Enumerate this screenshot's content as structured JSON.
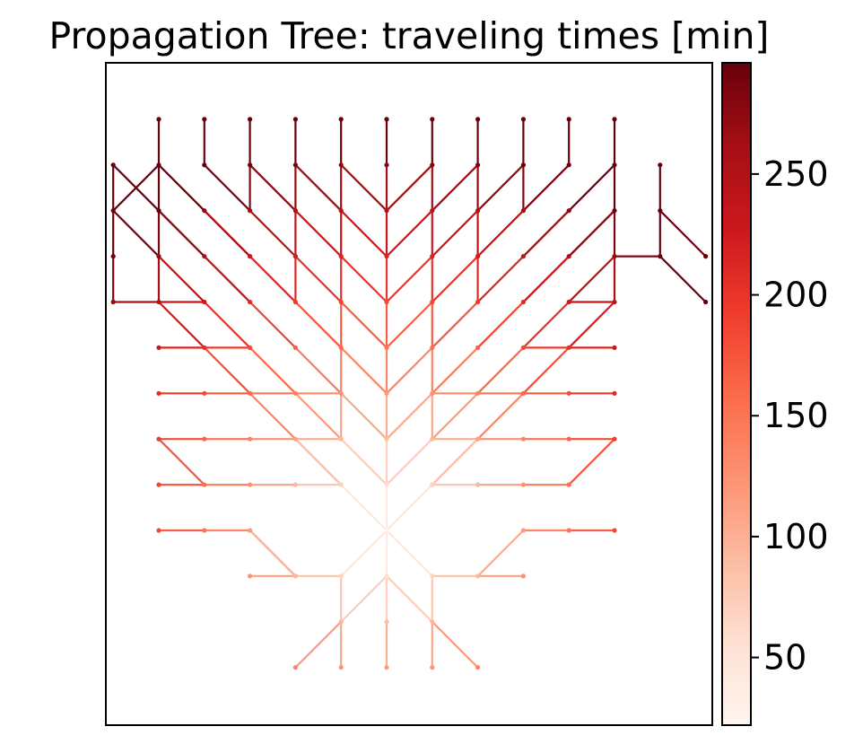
{
  "chart_data": {
    "type": "tree",
    "title": "Propagation Tree: traveling times [min]",
    "xlabel": "",
    "ylabel": "",
    "axes_ticks_visible": false,
    "grid": false,
    "legend": "none",
    "root": [
      0,
      0
    ],
    "edges": [
      [
        [
          0,
          0
        ],
        [
          0,
          1
        ]
      ],
      [
        [
          0,
          1
        ],
        [
          0,
          2
        ]
      ],
      [
        [
          0,
          2
        ],
        [
          0,
          3
        ]
      ],
      [
        [
          0,
          3
        ],
        [
          0,
          4
        ]
      ],
      [
        [
          0,
          4
        ],
        [
          0,
          5
        ]
      ],
      [
        [
          0,
          5
        ],
        [
          0,
          6
        ]
      ],
      [
        [
          0,
          6
        ],
        [
          0,
          7
        ]
      ],
      [
        [
          0,
          7
        ],
        [
          0,
          8
        ]
      ],
      [
        [
          0,
          8
        ],
        [
          0,
          9
        ]
      ],
      [
        [
          0,
          0
        ],
        [
          0,
          -1
        ]
      ],
      [
        [
          0,
          -1
        ],
        [
          0,
          -2
        ]
      ],
      [
        [
          0,
          -2
        ],
        [
          0,
          -3
        ]
      ],
      [
        [
          0,
          0
        ],
        [
          -1,
          -1
        ]
      ],
      [
        [
          -1,
          -1
        ],
        [
          -1,
          -2
        ]
      ],
      [
        [
          -1,
          -2
        ],
        [
          -1,
          -3
        ]
      ],
      [
        [
          0,
          0
        ],
        [
          1,
          -1
        ]
      ],
      [
        [
          1,
          -1
        ],
        [
          1,
          -2
        ]
      ],
      [
        [
          1,
          -2
        ],
        [
          1,
          -3
        ]
      ],
      [
        [
          0,
          -1
        ],
        [
          -1,
          -2
        ]
      ],
      [
        [
          -1,
          -2
        ],
        [
          -2,
          -3
        ]
      ],
      [
        [
          0,
          -1
        ],
        [
          1,
          -2
        ]
      ],
      [
        [
          1,
          -2
        ],
        [
          2,
          -3
        ]
      ],
      [
        [
          -1,
          -1
        ],
        [
          -2,
          -1
        ]
      ],
      [
        [
          -2,
          -1
        ],
        [
          -3,
          -1
        ]
      ],
      [
        [
          1,
          -1
        ],
        [
          2,
          -1
        ]
      ],
      [
        [
          2,
          -1
        ],
        [
          3,
          -1
        ]
      ],
      [
        [
          -2,
          -1
        ],
        [
          -3,
          0
        ]
      ],
      [
        [
          -3,
          0
        ],
        [
          -4,
          0
        ]
      ],
      [
        [
          -4,
          0
        ],
        [
          -5,
          0
        ]
      ],
      [
        [
          2,
          -1
        ],
        [
          3,
          0
        ]
      ],
      [
        [
          3,
          0
        ],
        [
          4,
          0
        ]
      ],
      [
        [
          4,
          0
        ],
        [
          5,
          0
        ]
      ],
      [
        [
          0,
          0
        ],
        [
          -1,
          1
        ]
      ],
      [
        [
          -1,
          1
        ],
        [
          -2,
          2
        ]
      ],
      [
        [
          -2,
          2
        ],
        [
          -3,
          3
        ]
      ],
      [
        [
          -3,
          3
        ],
        [
          -4,
          4
        ]
      ],
      [
        [
          -4,
          4
        ],
        [
          -5,
          5
        ]
      ],
      [
        [
          0,
          0
        ],
        [
          1,
          1
        ]
      ],
      [
        [
          1,
          1
        ],
        [
          2,
          2
        ]
      ],
      [
        [
          2,
          2
        ],
        [
          3,
          3
        ]
      ],
      [
        [
          3,
          3
        ],
        [
          4,
          4
        ]
      ],
      [
        [
          4,
          4
        ],
        [
          5,
          5
        ]
      ],
      [
        [
          0,
          1
        ],
        [
          -1,
          2
        ]
      ],
      [
        [
          -1,
          2
        ],
        [
          -2,
          3
        ]
      ],
      [
        [
          -2,
          3
        ],
        [
          -3,
          4
        ]
      ],
      [
        [
          -3,
          4
        ],
        [
          -4,
          5
        ]
      ],
      [
        [
          -4,
          5
        ],
        [
          -5,
          6
        ]
      ],
      [
        [
          0,
          1
        ],
        [
          1,
          2
        ]
      ],
      [
        [
          1,
          2
        ],
        [
          2,
          3
        ]
      ],
      [
        [
          2,
          3
        ],
        [
          3,
          4
        ]
      ],
      [
        [
          3,
          4
        ],
        [
          4,
          5
        ]
      ],
      [
        [
          4,
          5
        ],
        [
          5,
          6
        ]
      ],
      [
        [
          0,
          2
        ],
        [
          -1,
          3
        ]
      ],
      [
        [
          -1,
          3
        ],
        [
          -2,
          4
        ]
      ],
      [
        [
          -2,
          4
        ],
        [
          -3,
          5
        ]
      ],
      [
        [
          -3,
          5
        ],
        [
          -4,
          6
        ]
      ],
      [
        [
          -4,
          6
        ],
        [
          -5,
          7
        ]
      ],
      [
        [
          0,
          2
        ],
        [
          1,
          3
        ]
      ],
      [
        [
          1,
          3
        ],
        [
          2,
          4
        ]
      ],
      [
        [
          2,
          4
        ],
        [
          3,
          5
        ]
      ],
      [
        [
          3,
          5
        ],
        [
          4,
          6
        ]
      ],
      [
        [
          4,
          6
        ],
        [
          5,
          7
        ]
      ],
      [
        [
          0,
          3
        ],
        [
          -1,
          4
        ]
      ],
      [
        [
          -1,
          4
        ],
        [
          -2,
          5
        ]
      ],
      [
        [
          -2,
          5
        ],
        [
          -3,
          6
        ]
      ],
      [
        [
          -3,
          6
        ],
        [
          -4,
          7
        ]
      ],
      [
        [
          -4,
          7
        ],
        [
          -5,
          8
        ]
      ],
      [
        [
          0,
          3
        ],
        [
          1,
          4
        ]
      ],
      [
        [
          1,
          4
        ],
        [
          2,
          5
        ]
      ],
      [
        [
          2,
          5
        ],
        [
          3,
          6
        ]
      ],
      [
        [
          3,
          6
        ],
        [
          4,
          7
        ]
      ],
      [
        [
          4,
          7
        ],
        [
          5,
          8
        ]
      ],
      [
        [
          0,
          4
        ],
        [
          -1,
          5
        ]
      ],
      [
        [
          -1,
          5
        ],
        [
          -2,
          6
        ]
      ],
      [
        [
          -2,
          6
        ],
        [
          -3,
          7
        ]
      ],
      [
        [
          -3,
          7
        ],
        [
          -4,
          8
        ]
      ],
      [
        [
          0,
          4
        ],
        [
          1,
          5
        ]
      ],
      [
        [
          1,
          5
        ],
        [
          2,
          6
        ]
      ],
      [
        [
          2,
          6
        ],
        [
          3,
          7
        ]
      ],
      [
        [
          3,
          7
        ],
        [
          4,
          8
        ]
      ],
      [
        [
          0,
          5
        ],
        [
          -1,
          6
        ]
      ],
      [
        [
          -1,
          6
        ],
        [
          -2,
          7
        ]
      ],
      [
        [
          -2,
          7
        ],
        [
          -3,
          8
        ]
      ],
      [
        [
          0,
          5
        ],
        [
          1,
          6
        ]
      ],
      [
        [
          1,
          6
        ],
        [
          2,
          7
        ]
      ],
      [
        [
          2,
          7
        ],
        [
          3,
          8
        ]
      ],
      [
        [
          0,
          6
        ],
        [
          -1,
          7
        ]
      ],
      [
        [
          -1,
          7
        ],
        [
          -2,
          8
        ]
      ],
      [
        [
          0,
          6
        ],
        [
          1,
          7
        ]
      ],
      [
        [
          1,
          7
        ],
        [
          2,
          8
        ]
      ],
      [
        [
          0,
          7
        ],
        [
          -1,
          8
        ]
      ],
      [
        [
          0,
          7
        ],
        [
          1,
          8
        ]
      ],
      [
        [
          -1,
          2
        ],
        [
          -1,
          3
        ]
      ],
      [
        [
          -1,
          3
        ],
        [
          -1,
          4
        ]
      ],
      [
        [
          -1,
          4
        ],
        [
          -1,
          5
        ]
      ],
      [
        [
          -1,
          5
        ],
        [
          -1,
          6
        ]
      ],
      [
        [
          -1,
          6
        ],
        [
          -1,
          7
        ]
      ],
      [
        [
          -1,
          7
        ],
        [
          -1,
          8
        ]
      ],
      [
        [
          -1,
          8
        ],
        [
          -1,
          9
        ]
      ],
      [
        [
          1,
          2
        ],
        [
          1,
          3
        ]
      ],
      [
        [
          1,
          3
        ],
        [
          1,
          4
        ]
      ],
      [
        [
          1,
          4
        ],
        [
          1,
          5
        ]
      ],
      [
        [
          1,
          5
        ],
        [
          1,
          6
        ]
      ],
      [
        [
          1,
          6
        ],
        [
          1,
          7
        ]
      ],
      [
        [
          1,
          7
        ],
        [
          1,
          8
        ]
      ],
      [
        [
          1,
          8
        ],
        [
          1,
          9
        ]
      ],
      [
        [
          -2,
          5
        ],
        [
          -2,
          6
        ]
      ],
      [
        [
          -2,
          6
        ],
        [
          -2,
          7
        ]
      ],
      [
        [
          -2,
          7
        ],
        [
          -2,
          8
        ]
      ],
      [
        [
          -2,
          8
        ],
        [
          -2,
          9
        ]
      ],
      [
        [
          2,
          5
        ],
        [
          2,
          6
        ]
      ],
      [
        [
          2,
          6
        ],
        [
          2,
          7
        ]
      ],
      [
        [
          2,
          7
        ],
        [
          2,
          8
        ]
      ],
      [
        [
          2,
          8
        ],
        [
          2,
          9
        ]
      ],
      [
        [
          -3,
          7
        ],
        [
          -3,
          8
        ]
      ],
      [
        [
          -3,
          8
        ],
        [
          -3,
          9
        ]
      ],
      [
        [
          3,
          7
        ],
        [
          3,
          8
        ]
      ],
      [
        [
          3,
          8
        ],
        [
          3,
          9
        ]
      ],
      [
        [
          -4,
          8
        ],
        [
          -4,
          9
        ]
      ],
      [
        [
          4,
          8
        ],
        [
          4,
          9
        ]
      ],
      [
        [
          -5,
          5
        ],
        [
          -5,
          6
        ]
      ],
      [
        [
          -5,
          6
        ],
        [
          -5,
          7
        ]
      ],
      [
        [
          -5,
          7
        ],
        [
          -5,
          8
        ]
      ],
      [
        [
          -5,
          8
        ],
        [
          -5,
          9
        ]
      ],
      [
        [
          5,
          5
        ],
        [
          5,
          6
        ]
      ],
      [
        [
          5,
          6
        ],
        [
          5,
          7
        ]
      ],
      [
        [
          5,
          7
        ],
        [
          5,
          8
        ]
      ],
      [
        [
          5,
          8
        ],
        [
          5,
          9
        ]
      ],
      [
        [
          -3,
          3
        ],
        [
          -4,
          3
        ]
      ],
      [
        [
          -4,
          3
        ],
        [
          -5,
          3
        ]
      ],
      [
        [
          -3,
          4
        ],
        [
          -4,
          4
        ]
      ],
      [
        [
          -4,
          4
        ],
        [
          -5,
          4
        ]
      ],
      [
        [
          3,
          3
        ],
        [
          4,
          3
        ]
      ],
      [
        [
          4,
          3
        ],
        [
          5,
          3
        ]
      ],
      [
        [
          3,
          4
        ],
        [
          4,
          4
        ]
      ],
      [
        [
          4,
          4
        ],
        [
          5,
          4
        ]
      ],
      [
        [
          -3,
          2
        ],
        [
          -4,
          2
        ]
      ],
      [
        [
          -4,
          2
        ],
        [
          -5,
          2
        ]
      ],
      [
        [
          3,
          2
        ],
        [
          4,
          2
        ]
      ],
      [
        [
          4,
          2
        ],
        [
          5,
          2
        ]
      ],
      [
        [
          -4,
          5
        ],
        [
          -5,
          5
        ]
      ],
      [
        [
          4,
          5
        ],
        [
          5,
          5
        ]
      ],
      [
        [
          -5,
          5
        ],
        [
          -6,
          5
        ]
      ],
      [
        [
          -6,
          5
        ],
        [
          -6,
          6
        ]
      ],
      [
        [
          -6,
          6
        ],
        [
          -6,
          7
        ]
      ],
      [
        [
          -6,
          7
        ],
        [
          -5,
          8
        ]
      ],
      [
        [
          -5,
          6
        ],
        [
          -6,
          7
        ]
      ],
      [
        [
          -5,
          7
        ],
        [
          -6,
          8
        ]
      ],
      [
        [
          -6,
          8
        ],
        [
          -6,
          7
        ]
      ],
      [
        [
          5,
          6
        ],
        [
          6,
          6
        ]
      ],
      [
        [
          6,
          6
        ],
        [
          7,
          5
        ]
      ],
      [
        [
          6,
          6
        ],
        [
          6,
          7
        ]
      ],
      [
        [
          6,
          7
        ],
        [
          6,
          8
        ]
      ],
      [
        [
          6,
          7
        ],
        [
          7,
          6
        ]
      ],
      [
        [
          -5,
          2
        ],
        [
          -4,
          1
        ]
      ],
      [
        [
          5,
          2
        ],
        [
          4,
          1
        ]
      ],
      [
        [
          -3,
          1
        ],
        [
          -4,
          1
        ]
      ],
      [
        [
          -4,
          1
        ],
        [
          -5,
          1
        ]
      ],
      [
        [
          3,
          1
        ],
        [
          4,
          1
        ]
      ],
      [
        [
          -3,
          6
        ],
        [
          -4,
          7
        ]
      ],
      [
        [
          3,
          6
        ],
        [
          4,
          7
        ]
      ],
      [
        [
          -4,
          6
        ],
        [
          -5,
          7
        ]
      ],
      [
        [
          4,
          6
        ],
        [
          5,
          7
        ]
      ],
      [
        [
          -3,
          5
        ],
        [
          -4,
          6
        ]
      ],
      [
        [
          3,
          5
        ],
        [
          4,
          6
        ]
      ],
      [
        [
          -2,
          3
        ],
        [
          -3,
          3
        ]
      ],
      [
        [
          2,
          3
        ],
        [
          3,
          3
        ]
      ],
      [
        [
          -2,
          2
        ],
        [
          -3,
          2
        ]
      ],
      [
        [
          2,
          2
        ],
        [
          3,
          2
        ]
      ],
      [
        [
          -1,
          1
        ],
        [
          -2,
          1
        ]
      ],
      [
        [
          -2,
          1
        ],
        [
          -3,
          1
        ]
      ],
      [
        [
          1,
          1
        ],
        [
          2,
          1
        ]
      ],
      [
        [
          2,
          1
        ],
        [
          3,
          1
        ]
      ],
      [
        [
          -1,
          2
        ],
        [
          -2,
          2
        ]
      ],
      [
        [
          1,
          2
        ],
        [
          2,
          2
        ]
      ],
      [
        [
          -1,
          3
        ],
        [
          -2,
          3
        ]
      ],
      [
        [
          1,
          3
        ],
        [
          2,
          3
        ]
      ]
    ],
    "node_value_scale_per_step": 32,
    "colorbar": {
      "label": "",
      "min": 22,
      "max": 296,
      "ticks": [
        50,
        100,
        150,
        200,
        250
      ],
      "colormap": [
        "#fff5f0",
        "#fee0d2",
        "#fcbba1",
        "#fc9272",
        "#fb6a4a",
        "#ef3b2c",
        "#cb181d",
        "#a50f15",
        "#67000d"
      ]
    }
  }
}
